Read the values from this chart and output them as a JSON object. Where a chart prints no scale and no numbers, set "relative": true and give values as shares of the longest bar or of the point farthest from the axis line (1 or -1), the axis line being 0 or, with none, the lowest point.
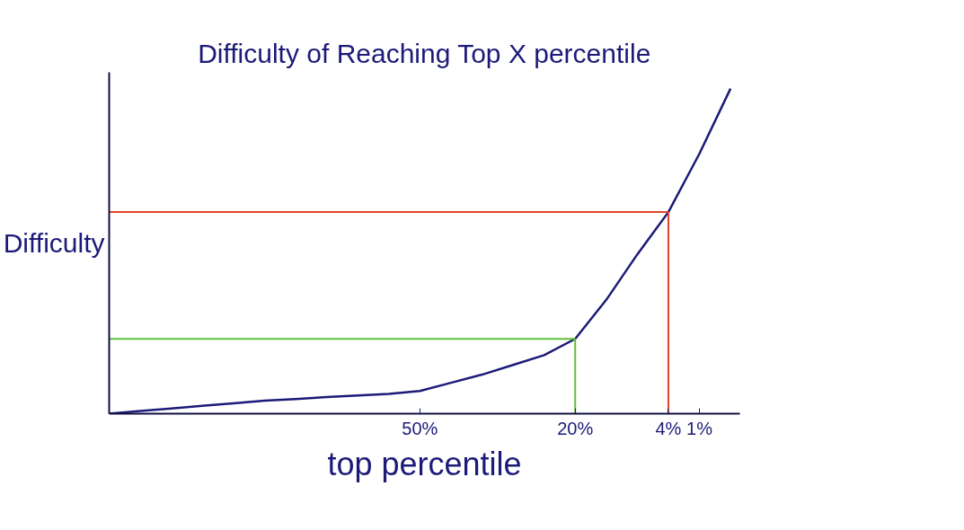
{
  "chart_data": {
    "type": "line",
    "title": "Difficulty of Reaching Top X percentile",
    "xlabel": "top percentile",
    "ylabel": "Difficulty",
    "relative": true,
    "categories": [
      null,
      null,
      null,
      null,
      null,
      null,
      null,
      null,
      null,
      null,
      "50%",
      null,
      null,
      null,
      null,
      "20%",
      null,
      null,
      "4%",
      "1%",
      null
    ],
    "series": [
      {
        "color": "#1c1a78",
        "values": [
          0,
          0.008,
          0.016,
          0.024,
          0.032,
          0.04,
          0.045,
          0.051,
          0.056,
          0.061,
          0.07,
          0.095,
          0.12,
          0.15,
          0.18,
          0.23,
          0.35,
          0.49,
          0.62,
          0.8,
          1.0
        ]
      }
    ],
    "ref_lines": [
      {
        "axis": "y",
        "value": 0.62,
        "color": "#e0442c"
      },
      {
        "axis": "x",
        "value": "4%",
        "color": "#e0442c"
      },
      {
        "axis": "y",
        "value": 0.23,
        "color": "#62bf3c"
      },
      {
        "axis": "x",
        "value": "20%",
        "color": "#62bf3c"
      }
    ],
    "grid": false,
    "tick_labels": "x",
    "line_style": "solid"
  }
}
